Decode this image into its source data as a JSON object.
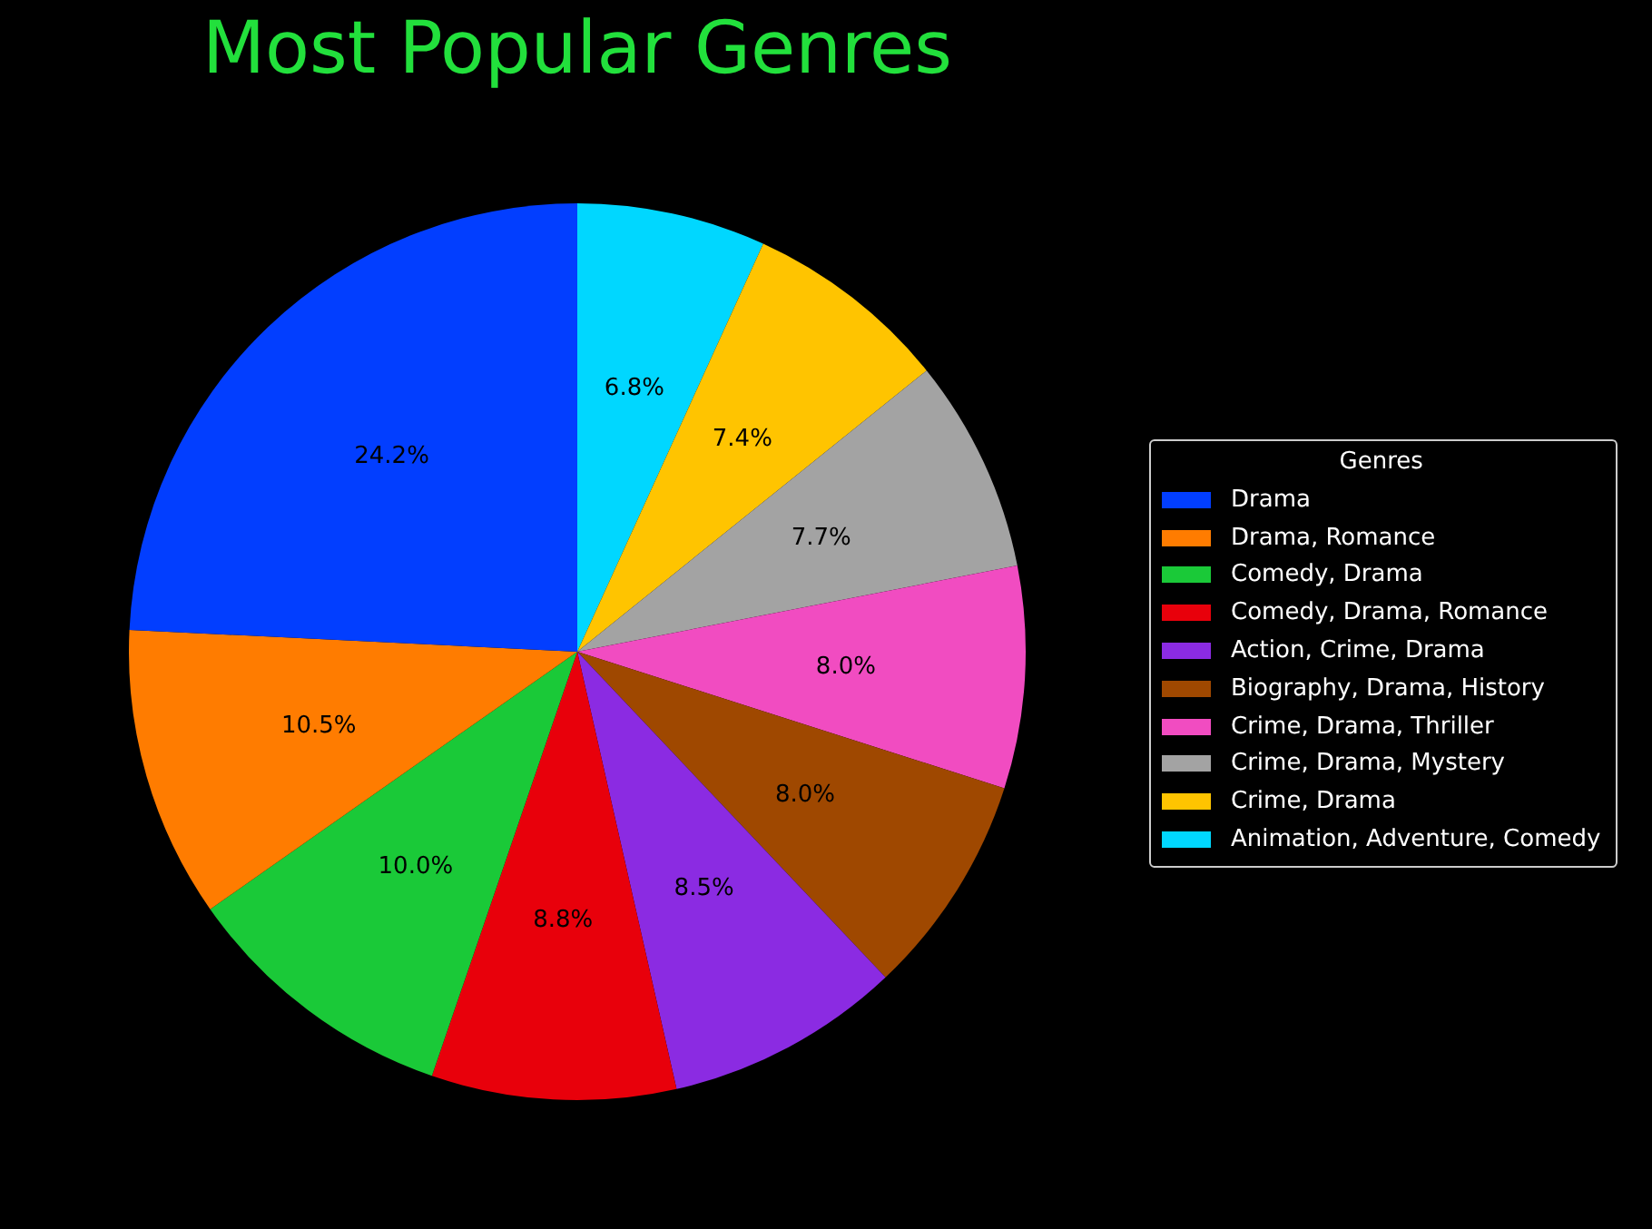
{
  "chart_data": {
    "type": "pie",
    "title": "Most Popular Genres",
    "legend_title": "Genres",
    "legend": "right",
    "categories": [
      "Drama",
      "Drama, Romance",
      "Comedy, Drama",
      "Comedy, Drama, Romance",
      "Action, Crime, Drama",
      "Biography, Drama, History",
      "Crime, Drama, Thriller",
      "Crime, Drama, Mystery",
      "Crime, Drama",
      "Animation, Adventure, Comedy"
    ],
    "values": [
      24.2,
      10.5,
      10.0,
      8.8,
      8.5,
      8.0,
      8.0,
      7.7,
      7.4,
      6.8
    ],
    "colors": [
      "#023eff",
      "#ff7c00",
      "#1ac938",
      "#e8000b",
      "#8b2be2",
      "#9f4800",
      "#f14cc1",
      "#a3a3a3",
      "#ffc400",
      "#00d7ff"
    ],
    "value_labels": [
      "24.2%",
      "10.5%",
      "10.0%",
      "8.8%",
      "8.5%",
      "8.0%",
      "8.0%",
      "7.7%",
      "7.4%",
      "6.8%"
    ]
  }
}
